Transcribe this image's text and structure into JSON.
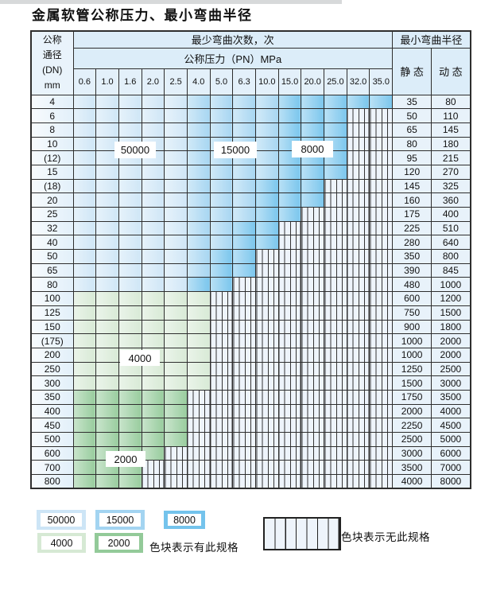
{
  "title": "金属软管公称压力、最小弯曲半径",
  "colors": {
    "50000": "#cde5f6",
    "15000": "#a3d4f1",
    "8000": "#74c3ec",
    "4000": "#d6e9d4",
    "2000": "#93ca99"
  },
  "table": {
    "header": {
      "dn_lines": [
        "公称",
        "通径",
        "(DN)",
        "mm"
      ],
      "bend_cycles": "最少弯曲次数，次",
      "pressure_title": "公称压力（PN）MPa",
      "min_bend_radius": "最小弯曲半径",
      "static_label": "静 态",
      "dynamic_label": "动 态",
      "pressures": [
        "0.6",
        "1.0",
        "1.6",
        "2.0",
        "2.5",
        "4.0",
        "5.0",
        "6.3",
        "10.0",
        "15.0",
        "20.0",
        "25.0",
        "32.0",
        "35.0"
      ]
    },
    "rows": [
      {
        "dn": "4",
        "static": "35",
        "dynamic": "80",
        "spans": [
          [
            "50000",
            5
          ],
          [
            "15000",
            4
          ],
          [
            "8000",
            5
          ]
        ]
      },
      {
        "dn": "6",
        "static": "50",
        "dynamic": "110",
        "spans": [
          [
            "50000",
            5
          ],
          [
            "15000",
            4
          ],
          [
            "8000",
            3
          ]
        ]
      },
      {
        "dn": "8",
        "static": "65",
        "dynamic": "145",
        "spans": [
          [
            "50000",
            5
          ],
          [
            "15000",
            4
          ],
          [
            "8000",
            3
          ]
        ]
      },
      {
        "dn": "10",
        "static": "80",
        "dynamic": "180",
        "spans": [
          [
            "50000",
            5
          ],
          [
            "15000",
            4
          ],
          [
            "8000",
            3
          ]
        ]
      },
      {
        "dn": "(12)",
        "static": "95",
        "dynamic": "215",
        "spans": [
          [
            "50000",
            5
          ],
          [
            "15000",
            4
          ],
          [
            "8000",
            3
          ]
        ]
      },
      {
        "dn": "15",
        "static": "120",
        "dynamic": "270",
        "spans": [
          [
            "50000",
            5
          ],
          [
            "15000",
            4
          ],
          [
            "8000",
            3
          ]
        ]
      },
      {
        "dn": "(18)",
        "static": "145",
        "dynamic": "325",
        "spans": [
          [
            "50000",
            5
          ],
          [
            "15000",
            3
          ],
          [
            "8000",
            3
          ]
        ]
      },
      {
        "dn": "20",
        "static": "160",
        "dynamic": "360",
        "spans": [
          [
            "50000",
            5
          ],
          [
            "15000",
            3
          ],
          [
            "8000",
            3
          ]
        ]
      },
      {
        "dn": "25",
        "static": "175",
        "dynamic": "400",
        "spans": [
          [
            "50000",
            5
          ],
          [
            "15000",
            3
          ],
          [
            "8000",
            2
          ]
        ]
      },
      {
        "dn": "32",
        "static": "225",
        "dynamic": "510",
        "spans": [
          [
            "50000",
            5
          ],
          [
            "15000",
            2
          ],
          [
            "8000",
            2
          ]
        ]
      },
      {
        "dn": "40",
        "static": "280",
        "dynamic": "640",
        "spans": [
          [
            "50000",
            5
          ],
          [
            "15000",
            2
          ],
          [
            "8000",
            2
          ]
        ]
      },
      {
        "dn": "50",
        "static": "350",
        "dynamic": "800",
        "spans": [
          [
            "50000",
            5
          ],
          [
            "15000",
            1
          ],
          [
            "8000",
            2
          ]
        ]
      },
      {
        "dn": "65",
        "static": "390",
        "dynamic": "845",
        "spans": [
          [
            "50000",
            5
          ],
          [
            "15000",
            1
          ],
          [
            "8000",
            2
          ]
        ]
      },
      {
        "dn": "80",
        "static": "480",
        "dynamic": "1000",
        "spans": [
          [
            "50000",
            5
          ],
          [
            "8000",
            2
          ]
        ]
      },
      {
        "dn": "100",
        "static": "600",
        "dynamic": "1200",
        "spans": [
          [
            "4000",
            6
          ]
        ]
      },
      {
        "dn": "125",
        "static": "750",
        "dynamic": "1500",
        "spans": [
          [
            "4000",
            6
          ]
        ]
      },
      {
        "dn": "150",
        "static": "900",
        "dynamic": "1800",
        "spans": [
          [
            "4000",
            6
          ]
        ]
      },
      {
        "dn": "(175)",
        "static": "1000",
        "dynamic": "2000",
        "spans": [
          [
            "4000",
            6
          ]
        ]
      },
      {
        "dn": "200",
        "static": "1000",
        "dynamic": "2000",
        "spans": [
          [
            "4000",
            6
          ]
        ]
      },
      {
        "dn": "250",
        "static": "1250",
        "dynamic": "2500",
        "spans": [
          [
            "4000",
            6
          ]
        ]
      },
      {
        "dn": "300",
        "static": "1500",
        "dynamic": "3000",
        "spans": [
          [
            "4000",
            6
          ]
        ]
      },
      {
        "dn": "350",
        "static": "1750",
        "dynamic": "3500",
        "spans": [
          [
            "2000",
            5
          ]
        ]
      },
      {
        "dn": "400",
        "static": "2000",
        "dynamic": "4000",
        "spans": [
          [
            "2000",
            5
          ]
        ]
      },
      {
        "dn": "450",
        "static": "2250",
        "dynamic": "4500",
        "spans": [
          [
            "2000",
            5
          ]
        ]
      },
      {
        "dn": "500",
        "static": "2500",
        "dynamic": "5000",
        "spans": [
          [
            "2000",
            5
          ]
        ]
      },
      {
        "dn": "600",
        "static": "3000",
        "dynamic": "6000",
        "spans": [
          [
            "2000",
            4
          ]
        ]
      },
      {
        "dn": "700",
        "static": "3500",
        "dynamic": "7000",
        "spans": [
          [
            "2000",
            3
          ]
        ]
      },
      {
        "dn": "800",
        "static": "4000",
        "dynamic": "8000",
        "spans": [
          [
            "2000",
            3
          ]
        ]
      }
    ]
  },
  "legend": {
    "specs": [
      {
        "label": "50000",
        "zone": "50000"
      },
      {
        "label": "15000",
        "zone": "15000"
      },
      {
        "label": "8000",
        "zone": "8000"
      },
      {
        "label": "4000",
        "zone": "4000"
      },
      {
        "label": "2000",
        "zone": "2000"
      }
    ],
    "available_note": "色块表示有此规格",
    "unavailable_note": "色块表示无此规格"
  }
}
